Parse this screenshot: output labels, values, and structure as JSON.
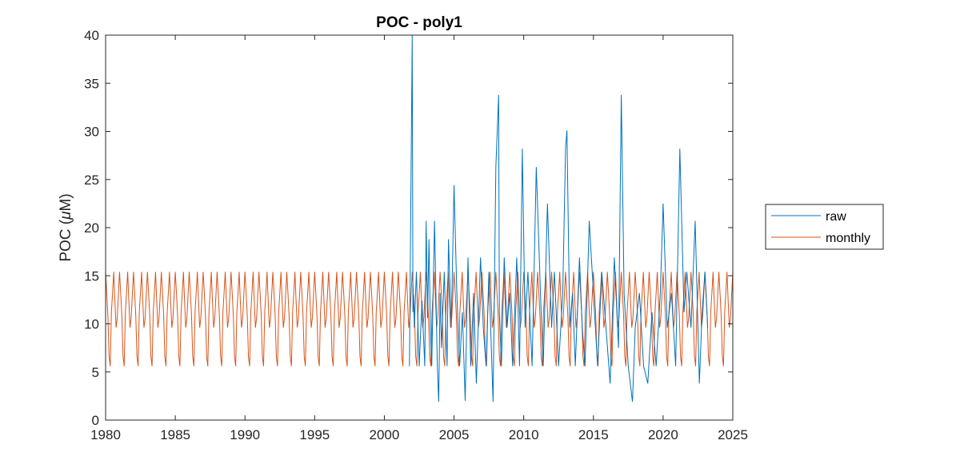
{
  "chart_data": {
    "type": "line",
    "title": "POC - poly1",
    "xlabel": "",
    "ylabel": "POC (",
    "ylabel_mu": "μ",
    "ylabel_suffix": "M)",
    "xlim": [
      1980,
      2025
    ],
    "ylim": [
      0,
      40
    ],
    "xticks": [
      1980,
      1985,
      1990,
      1995,
      2000,
      2005,
      2010,
      2015,
      2020,
      2025
    ],
    "yticks": [
      0,
      5,
      10,
      15,
      20,
      25,
      30,
      35,
      40
    ],
    "grid": false,
    "legend_position": "outside-right",
    "monthly_cycle": [
      15.4,
      13.2,
      10.8,
      6.6,
      5.6,
      11.2,
      13.2,
      15.4,
      12.4,
      9.6,
      10.6,
      13.0
    ],
    "series": [
      {
        "name": "raw",
        "color": "#0072BD",
        "x": [
          2001.8,
          2002.0,
          2002.05,
          2002.1,
          2002.15,
          2002.3,
          2002.5,
          2002.7,
          2002.9,
          2003.0,
          2003.1,
          2003.2,
          2003.3,
          2003.4,
          2003.5,
          2003.6,
          2003.8,
          2003.9,
          2004.0,
          2004.1,
          2004.3,
          2004.5,
          2004.6,
          2004.8,
          2005.0,
          2005.2,
          2005.4,
          2005.6,
          2005.8,
          2006.0,
          2006.2,
          2006.4,
          2006.6,
          2006.9,
          2007.1,
          2007.3,
          2007.5,
          2007.8,
          2008.0,
          2008.2,
          2008.25,
          2008.4,
          2008.6,
          2008.8,
          2009.0,
          2009.2,
          2009.5,
          2009.7,
          2009.9,
          2010.1,
          2010.3,
          2010.6,
          2010.9,
          2011.2,
          2011.4,
          2011.7,
          2012.0,
          2012.2,
          2012.5,
          2012.8,
          2013.0,
          2013.1,
          2013.3,
          2013.5,
          2013.7,
          2014.0,
          2014.2,
          2014.4,
          2014.7,
          2015.0,
          2015.3,
          2015.6,
          2015.9,
          2016.2,
          2016.5,
          2016.8,
          2017.0,
          2017.2,
          2017.5,
          2017.8,
          2018.0,
          2018.3,
          2018.6,
          2018.9,
          2019.2,
          2019.5,
          2019.8,
          2020.0,
          2020.3,
          2020.6,
          2020.9,
          2021.2,
          2021.5,
          2021.7,
          2022.0,
          2022.3,
          2022.6,
          2022.8,
          2023.0,
          2023.2
        ],
        "y": [
          5.6,
          40.0,
          11.2,
          13.0,
          9.6,
          15.4,
          5.6,
          12.4,
          5.6,
          20.7,
          10.6,
          18.8,
          9.6,
          5.6,
          13.2,
          20.7,
          5.6,
          1.9,
          13.2,
          7.5,
          15.4,
          5.6,
          18.8,
          9.6,
          24.4,
          13.2,
          5.6,
          11.2,
          2.0,
          16.9,
          5.6,
          13.2,
          3.8,
          16.9,
          9.6,
          5.6,
          15.4,
          1.9,
          26.3,
          33.8,
          11.2,
          5.6,
          16.9,
          9.6,
          13.2,
          5.6,
          16.9,
          5.6,
          28.2,
          9.6,
          15.4,
          5.6,
          26.3,
          13.2,
          5.6,
          22.5,
          9.6,
          15.4,
          5.6,
          13.2,
          28.2,
          30.1,
          9.6,
          13.2,
          5.6,
          16.9,
          9.6,
          5.6,
          20.7,
          13.2,
          5.6,
          15.4,
          9.6,
          3.8,
          16.9,
          7.5,
          33.8,
          13.2,
          5.6,
          1.9,
          9.6,
          13.2,
          5.6,
          3.8,
          11.2,
          5.6,
          13.2,
          22.5,
          9.6,
          13.2,
          5.6,
          28.2,
          11.2,
          15.4,
          9.6,
          20.7,
          3.8,
          11.2,
          15.4,
          9.6
        ]
      },
      {
        "name": "monthly",
        "color": "#D95319"
      }
    ]
  }
}
